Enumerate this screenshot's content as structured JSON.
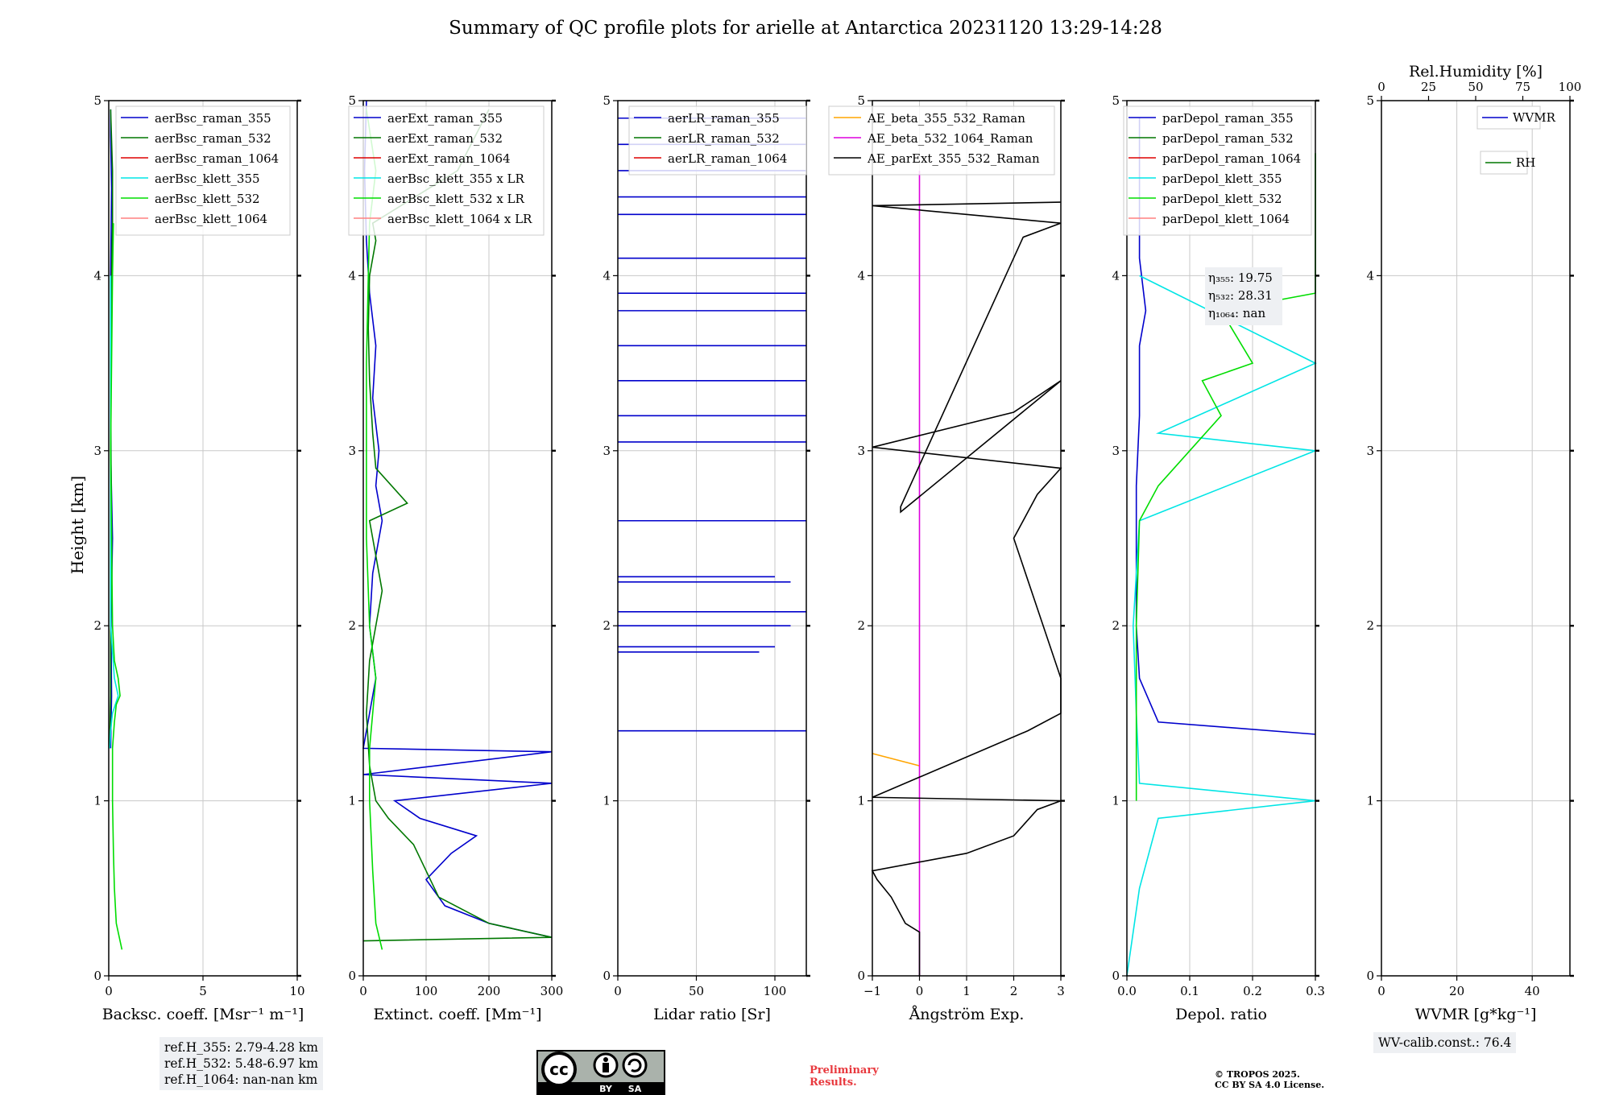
{
  "title": "Summary of QC profile plots for arielle at Antarctica 20231120 13:29-14:28",
  "y_axis_label": "Height [km]",
  "panels": [
    {
      "xlabel": "Backsc. coeff. [Msr⁻¹ m⁻¹]",
      "xlim": [
        0,
        10
      ],
      "xticks": [
        "0",
        "5",
        "10"
      ],
      "legend": [
        {
          "label": "aerBsc_raman_355",
          "color": "#0000cc"
        },
        {
          "label": "aerBsc_raman_532",
          "color": "#007700"
        },
        {
          "label": "aerBsc_raman_1064",
          "color": "#dd0000"
        },
        {
          "label": "aerBsc_klett_355",
          "color": "#00e5e5"
        },
        {
          "label": "aerBsc_klett_532",
          "color": "#00dd00"
        },
        {
          "label": "aerBsc_klett_1064",
          "color": "#ff8080"
        }
      ]
    },
    {
      "xlabel": "Extinct. coeff. [Mm⁻¹]",
      "xlim": [
        0,
        300
      ],
      "xticks": [
        "0",
        "100",
        "200",
        "300"
      ],
      "legend": [
        {
          "label": "aerExt_raman_355",
          "color": "#0000cc"
        },
        {
          "label": "aerExt_raman_532",
          "color": "#007700"
        },
        {
          "label": "aerExt_raman_1064",
          "color": "#dd0000"
        },
        {
          "label": "aerBsc_klett_355 x LR",
          "color": "#00e5e5"
        },
        {
          "label": "aerBsc_klett_532 x LR",
          "color": "#00dd00"
        },
        {
          "label": "aerBsc_klett_1064 x LR",
          "color": "#ff8080"
        }
      ]
    },
    {
      "xlabel": "Lidar ratio [Sr]",
      "xlim": [
        0,
        120
      ],
      "xticks": [
        "0",
        "50",
        "100"
      ],
      "legend": [
        {
          "label": "aerLR_raman_355",
          "color": "#0000cc"
        },
        {
          "label": "aerLR_raman_532",
          "color": "#007700"
        },
        {
          "label": "aerLR_raman_1064",
          "color": "#dd0000"
        }
      ]
    },
    {
      "xlabel": "Ångström Exp.",
      "xlim": [
        -1,
        3
      ],
      "xticks": [
        "−1",
        "0",
        "1",
        "2",
        "3"
      ],
      "legend": [
        {
          "label": "AE_beta_355_532_Raman",
          "color": "#ffa500"
        },
        {
          "label": "AE_beta_532_1064_Raman",
          "color": "#dd00dd"
        },
        {
          "label": "AE_parExt_355_532_Raman",
          "color": "#000000"
        }
      ]
    },
    {
      "xlabel": "Depol. ratio",
      "xlim": [
        0,
        0.3
      ],
      "xticks": [
        "0.0",
        "0.1",
        "0.2",
        "0.3"
      ],
      "legend": [
        {
          "label": "parDepol_raman_355",
          "color": "#0000cc"
        },
        {
          "label": "parDepol_raman_532",
          "color": "#007700"
        },
        {
          "label": "parDepol_raman_1064",
          "color": "#dd0000"
        },
        {
          "label": "parDepol_klett_355",
          "color": "#00e5e5"
        },
        {
          "label": "parDepol_klett_532",
          "color": "#00dd00"
        },
        {
          "label": "parDepol_klett_1064",
          "color": "#ff8080"
        }
      ],
      "eta": [
        "η₃₅₅: 19.75",
        "η₅₃₂: 28.31",
        "η₁₀₆₄: nan"
      ]
    },
    {
      "xlabel": "WVMR [g*kg⁻¹]",
      "xlim": [
        0,
        50
      ],
      "xticks": [
        "0",
        "20",
        "40"
      ],
      "top_label": "Rel.Humidity [%]",
      "top_ticks": [
        "0",
        "25",
        "50",
        "75",
        "100"
      ],
      "legend": [
        {
          "label": "WVMR",
          "color": "#0000cc"
        },
        {
          "label": "RH",
          "color": "#007700"
        }
      ]
    }
  ],
  "y_ticks": [
    "0",
    "1",
    "2",
    "3",
    "4",
    "5"
  ],
  "ref_heights": [
    "ref.H_355: 2.79-4.28 km",
    "ref.H_532: 5.48-6.97 km",
    "ref.H_1064: nan-nan km"
  ],
  "wv_calib": "WV-calib.const.: 76.4",
  "preliminary": [
    "Preliminary",
    "Results."
  ],
  "copyright": [
    "© TROPOS 2025.",
    "CC BY SA 4.0 License."
  ],
  "cc_badge": {
    "by": "BY",
    "sa": "SA"
  },
  "chart_data": [
    {
      "type": "line",
      "xlabel": "Backsc. coeff. [Msr⁻¹ m⁻¹]",
      "ylabel": "Height [km]",
      "xlim": [
        0,
        10
      ],
      "ylim": [
        0,
        5
      ],
      "grid": true,
      "legend_position": "top-right",
      "series": [
        {
          "name": "aerBsc_raman_355",
          "x": [
            0.1,
            0.15,
            0.12,
            0.2,
            0.1,
            0.12,
            0.1,
            0.15,
            0.1,
            0.1
          ],
          "y": [
            1.3,
            1.6,
            2.0,
            2.5,
            3.0,
            3.5,
            4.0,
            4.5,
            4.8,
            4.95
          ]
        },
        {
          "name": "aerBsc_raman_532",
          "x": [
            0.05,
            0.1,
            0.1,
            0.15,
            0.12,
            0.1,
            0.15,
            0.2,
            0.2,
            0.1
          ],
          "y": [
            1.3,
            1.6,
            2.0,
            2.5,
            3.0,
            3.5,
            4.0,
            4.3,
            4.6,
            4.95
          ]
        },
        {
          "name": "aerBsc_klett_355",
          "x": [
            0.05,
            0.1,
            0.2,
            0.5,
            0.3,
            0.1,
            0.1,
            0.1
          ],
          "y": [
            1.3,
            1.4,
            1.5,
            1.6,
            1.7,
            2.0,
            3.0,
            4.0
          ]
        },
        {
          "name": "aerBsc_klett_532",
          "x": [
            0.7,
            0.6,
            0.4,
            0.3,
            0.25,
            0.2,
            0.2,
            0.3,
            0.4,
            0.6,
            0.5,
            0.3,
            0.2,
            0.15,
            0.1,
            0.15,
            0.2,
            0.25
          ],
          "y": [
            0.15,
            0.2,
            0.3,
            0.5,
            0.7,
            1.0,
            1.3,
            1.45,
            1.55,
            1.6,
            1.7,
            1.8,
            2.0,
            2.5,
            3.0,
            3.5,
            4.0,
            4.3
          ]
        }
      ]
    },
    {
      "type": "line",
      "xlabel": "Extinct. coeff. [Mm⁻¹]",
      "ylabel": "Height [km]",
      "xlim": [
        0,
        300
      ],
      "ylim": [
        0,
        5
      ],
      "grid": true,
      "legend_position": "top-right",
      "series": [
        {
          "name": "aerExt_raman_355",
          "x": [
            300,
            200,
            130,
            100,
            140,
            180,
            90,
            50,
            300,
            0,
            300,
            0,
            10,
            20,
            10,
            15,
            30,
            20,
            25,
            15,
            20,
            10,
            5,
            2,
            5
          ],
          "y": [
            0.22,
            0.3,
            0.4,
            0.55,
            0.7,
            0.8,
            0.9,
            1.0,
            1.1,
            1.15,
            1.28,
            1.3,
            1.5,
            1.7,
            2.0,
            2.3,
            2.6,
            2.8,
            3.0,
            3.3,
            3.6,
            3.9,
            4.2,
            4.6,
            5.0
          ]
        },
        {
          "name": "aerExt_raman_532",
          "x": [
            0,
            300,
            200,
            120,
            100,
            80,
            40,
            20,
            10,
            5,
            10,
            30,
            10,
            70,
            20,
            15,
            10,
            8,
            10,
            20,
            15,
            150,
            200
          ],
          "y": [
            0.2,
            0.22,
            0.3,
            0.45,
            0.6,
            0.75,
            0.9,
            1.0,
            1.2,
            1.5,
            1.8,
            2.2,
            2.6,
            2.7,
            2.9,
            3.1,
            3.4,
            3.7,
            4.0,
            4.2,
            4.3,
            4.6,
            4.95
          ]
        },
        {
          "name": "aerBsc_klett_532 x LR",
          "x": [
            30,
            20,
            15,
            10,
            10,
            15,
            20,
            10,
            5,
            5,
            5,
            8,
            10,
            20,
            5
          ],
          "y": [
            0.15,
            0.3,
            0.6,
            1.0,
            1.3,
            1.5,
            1.7,
            2.0,
            2.5,
            3.0,
            3.5,
            4.0,
            4.3,
            4.6,
            4.95
          ]
        }
      ]
    },
    {
      "type": "scatter",
      "xlabel": "Lidar ratio [Sr]",
      "ylabel": "Height [km]",
      "xlim": [
        0,
        120
      ],
      "ylim": [
        0,
        5
      ],
      "grid": true,
      "legend_position": "top-right",
      "series": [
        {
          "name": "aerLR_raman_355",
          "x": [
            120,
            90,
            100,
            110,
            120,
            100,
            110,
            120,
            120,
            120,
            120,
            120,
            120,
            120,
            120,
            120,
            120,
            120,
            120,
            120
          ],
          "y": [
            1.4,
            1.85,
            1.88,
            2.0,
            2.08,
            2.28,
            2.25,
            2.6,
            3.05,
            3.2,
            3.4,
            3.6,
            3.8,
            3.9,
            4.1,
            4.35,
            4.45,
            4.6,
            4.75,
            4.9
          ]
        }
      ]
    },
    {
      "type": "line",
      "xlabel": "Ångström Exp.",
      "ylabel": "Height [km]",
      "xlim": [
        -1,
        3
      ],
      "ylim": [
        0,
        5
      ],
      "grid": true,
      "legend_position": "top-left",
      "series": [
        {
          "name": "AE_beta_355_532_Raman",
          "x": [
            -1,
            0
          ],
          "y": [
            1.27,
            1.2
          ]
        },
        {
          "name": "AE_beta_532_1064_Raman",
          "x": [
            0,
            0
          ],
          "y": [
            0,
            4.6
          ]
        },
        {
          "name": "AE_parExt_355_532_Raman",
          "x": [
            0,
            0,
            -0.3,
            -0.6,
            -0.9,
            -1,
            1,
            2,
            2.5,
            3,
            -1,
            2.3,
            3,
            3,
            2,
            2.5,
            3,
            -1,
            2,
            3,
            -0.4,
            -0.4,
            2.2,
            3,
            -1,
            3
          ],
          "y": [
            0,
            0.25,
            0.3,
            0.45,
            0.55,
            0.6,
            0.7,
            0.8,
            0.95,
            1.0,
            1.02,
            1.4,
            1.5,
            1.7,
            2.5,
            2.75,
            2.9,
            3.02,
            3.22,
            3.4,
            2.65,
            2.68,
            4.22,
            4.3,
            4.4,
            4.42
          ]
        }
      ]
    },
    {
      "type": "line",
      "xlabel": "Depol. ratio",
      "ylabel": "Height [km]",
      "xlim": [
        0,
        0.3
      ],
      "ylim": [
        0,
        5
      ],
      "grid": true,
      "legend_position": "top-left",
      "series": [
        {
          "name": "parDepol_raman_355",
          "x": [
            0.3,
            0.05,
            0.02,
            0.015,
            0.015,
            0.015,
            0.02,
            0.02,
            0.03,
            0.02,
            0.02
          ],
          "y": [
            1.38,
            1.45,
            1.7,
            2.0,
            2.5,
            2.8,
            3.2,
            3.6,
            3.8,
            4.1,
            4.9
          ]
        },
        {
          "name": "parDepol_klett_355",
          "x": [
            0.0,
            0.02,
            0.05,
            0.3,
            0.02,
            0.015,
            0.01,
            0.02,
            0.3,
            0.05,
            0.3,
            0.02
          ],
          "y": [
            0.0,
            0.5,
            0.9,
            1.0,
            1.1,
            1.5,
            2.0,
            2.6,
            3.0,
            3.1,
            3.5,
            4.0
          ]
        },
        {
          "name": "parDepol_klett_532",
          "x": [
            0.015,
            0.015,
            0.015,
            0.02,
            0.05,
            0.1,
            0.15,
            0.12,
            0.2,
            0.15,
            0.3,
            0.3
          ],
          "y": [
            1.0,
            1.4,
            2.0,
            2.6,
            2.8,
            3.0,
            3.2,
            3.4,
            3.5,
            3.8,
            3.9,
            4.7
          ]
        }
      ]
    },
    {
      "type": "line",
      "xlabel": "WVMR [g*kg⁻¹]",
      "ylabel": "Height [km]",
      "xlim": [
        0,
        50
      ],
      "ylim": [
        0,
        5
      ],
      "grid": true,
      "legend_position": "top-right",
      "series": [
        {
          "name": "WVMR",
          "x": [],
          "y": []
        },
        {
          "name": "RH",
          "x": [],
          "y": []
        }
      ]
    }
  ]
}
